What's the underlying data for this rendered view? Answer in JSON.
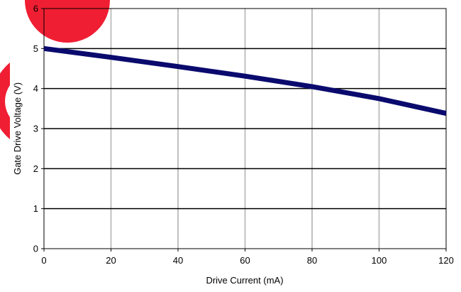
{
  "chart_data": {
    "type": "line",
    "xlabel": "Drive Current (mA)",
    "ylabel": "Gate Drive Voltage (V)",
    "xlim": [
      0,
      120
    ],
    "ylim": [
      0,
      6
    ],
    "xticks": [
      0,
      20,
      40,
      60,
      80,
      100,
      120
    ],
    "yticks": [
      0,
      1,
      2,
      3,
      4,
      5,
      6
    ],
    "grid": {
      "horizontal": true,
      "vertical": true,
      "horizontal_color": "#000000",
      "vertical_color": "#c0c0c0"
    },
    "series": [
      {
        "color": "#0a0a6e",
        "x": [
          0,
          20,
          40,
          60,
          80,
          100,
          120
        ],
        "y": [
          5.0,
          4.78,
          4.55,
          4.31,
          4.05,
          3.75,
          3.38
        ]
      }
    ]
  },
  "decorations": {
    "accent_color": "#f01e32"
  }
}
